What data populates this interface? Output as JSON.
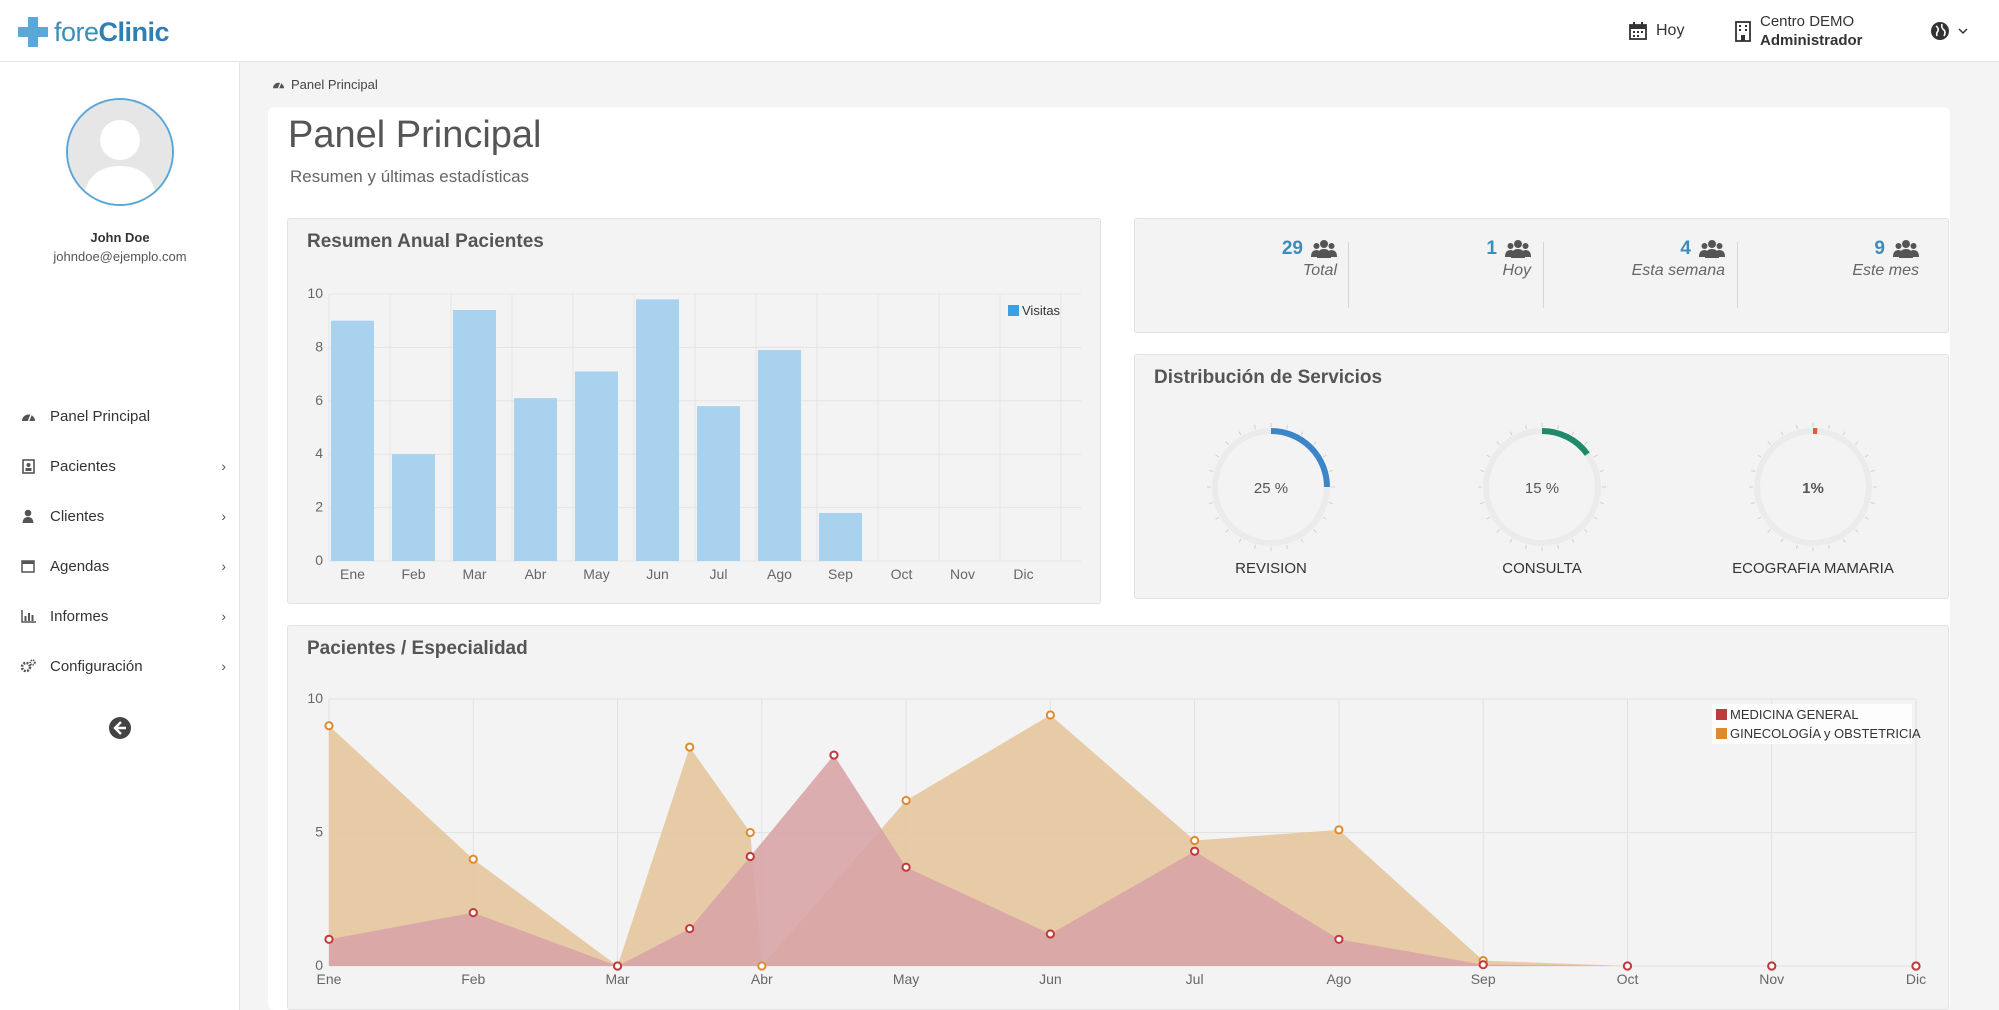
{
  "brand": {
    "name_light": "fore",
    "name_bold": "Clinic"
  },
  "topbar": {
    "today_label": "Hoy",
    "center_name": "Centro DEMO",
    "role": "Administrador"
  },
  "user": {
    "name": "John Doe",
    "email": "johndoe@ejemplo.com"
  },
  "sidebar": {
    "items": [
      {
        "label": "Panel Principal",
        "icon": "dashboard-icon"
      },
      {
        "label": "Pacientes",
        "icon": "patient-card-icon"
      },
      {
        "label": "Clientes",
        "icon": "user-icon"
      },
      {
        "label": "Agendas",
        "icon": "calendar-icon"
      },
      {
        "label": "Informes",
        "icon": "bar-chart-icon"
      },
      {
        "label": "Configuración",
        "icon": "gears-icon"
      }
    ]
  },
  "breadcrumb": "Panel Principal",
  "page": {
    "title": "Panel Principal",
    "subtitle": "Resumen y últimas estadísticas"
  },
  "stats": [
    {
      "value": "29",
      "label": "Total"
    },
    {
      "value": "1",
      "label": "Hoy"
    },
    {
      "value": "4",
      "label": "Esta semana"
    },
    {
      "value": "9",
      "label": "Este mes"
    }
  ],
  "services": {
    "title": "Distribución de Servicios",
    "gauges": [
      {
        "label": "REVISION",
        "text": "25 %",
        "value": 25,
        "color": "#3c85c8"
      },
      {
        "label": "CONSULTA",
        "text": "15 %",
        "value": 15,
        "color": "#1f8a6a"
      },
      {
        "label": "ECOGRAFIA MAMARIA",
        "text": "1%",
        "value": 1,
        "color": "#e8563f"
      }
    ]
  },
  "chart_data": [
    {
      "type": "bar",
      "title": "Resumen Anual Pacientes",
      "categories": [
        "Ene",
        "Feb",
        "Mar",
        "Abr",
        "May",
        "Jun",
        "Jul",
        "Ago",
        "Sep",
        "Oct",
        "Nov",
        "Dic"
      ],
      "series": [
        {
          "name": "Visitas",
          "values": [
            9,
            4,
            9.4,
            6.1,
            7.1,
            9.8,
            5.8,
            7.9,
            1.8,
            0,
            0,
            0
          ],
          "color": "#a9d2ee"
        }
      ],
      "yticks": [
        "0",
        "2",
        "4",
        "6",
        "8",
        "10"
      ],
      "ylim": [
        0,
        10
      ],
      "legend": "top-right",
      "grid": true
    },
    {
      "type": "area",
      "title": "Pacientes / Especialidad",
      "categories": [
        "Ene",
        "Feb",
        "Mar",
        "Abr",
        "May",
        "Jun",
        "Jul",
        "Ago",
        "Sep",
        "Oct",
        "Nov",
        "Dic"
      ],
      "series": [
        {
          "name": "MEDICINA GENERAL",
          "color": "#c0393b",
          "fill": "#d8a5a7",
          "x": [
            1,
            2,
            3,
            3.5,
            3.92,
            4.5,
            5,
            6,
            7,
            8,
            9,
            10,
            11,
            12
          ],
          "values": [
            1,
            2,
            0,
            1.4,
            4.1,
            7.9,
            3.7,
            1.2,
            4.3,
            1,
            0.05,
            0,
            0,
            0
          ]
        },
        {
          "name": "GINECOLOGÍA y OBSTETRICIA",
          "color": "#e08a2e",
          "fill": "#e6c69d",
          "x": [
            1,
            2,
            3,
            3.5,
            3.92,
            4,
            5,
            6,
            7,
            8,
            9,
            10,
            11,
            12
          ],
          "values": [
            9,
            4,
            0,
            8.2,
            5,
            0,
            6.2,
            9.4,
            4.7,
            5.1,
            0.2,
            0,
            0,
            0
          ]
        }
      ],
      "yticks": [
        "0",
        "5",
        "10"
      ],
      "ylim": [
        0,
        10
      ],
      "legend": "top-right",
      "grid": true
    }
  ]
}
